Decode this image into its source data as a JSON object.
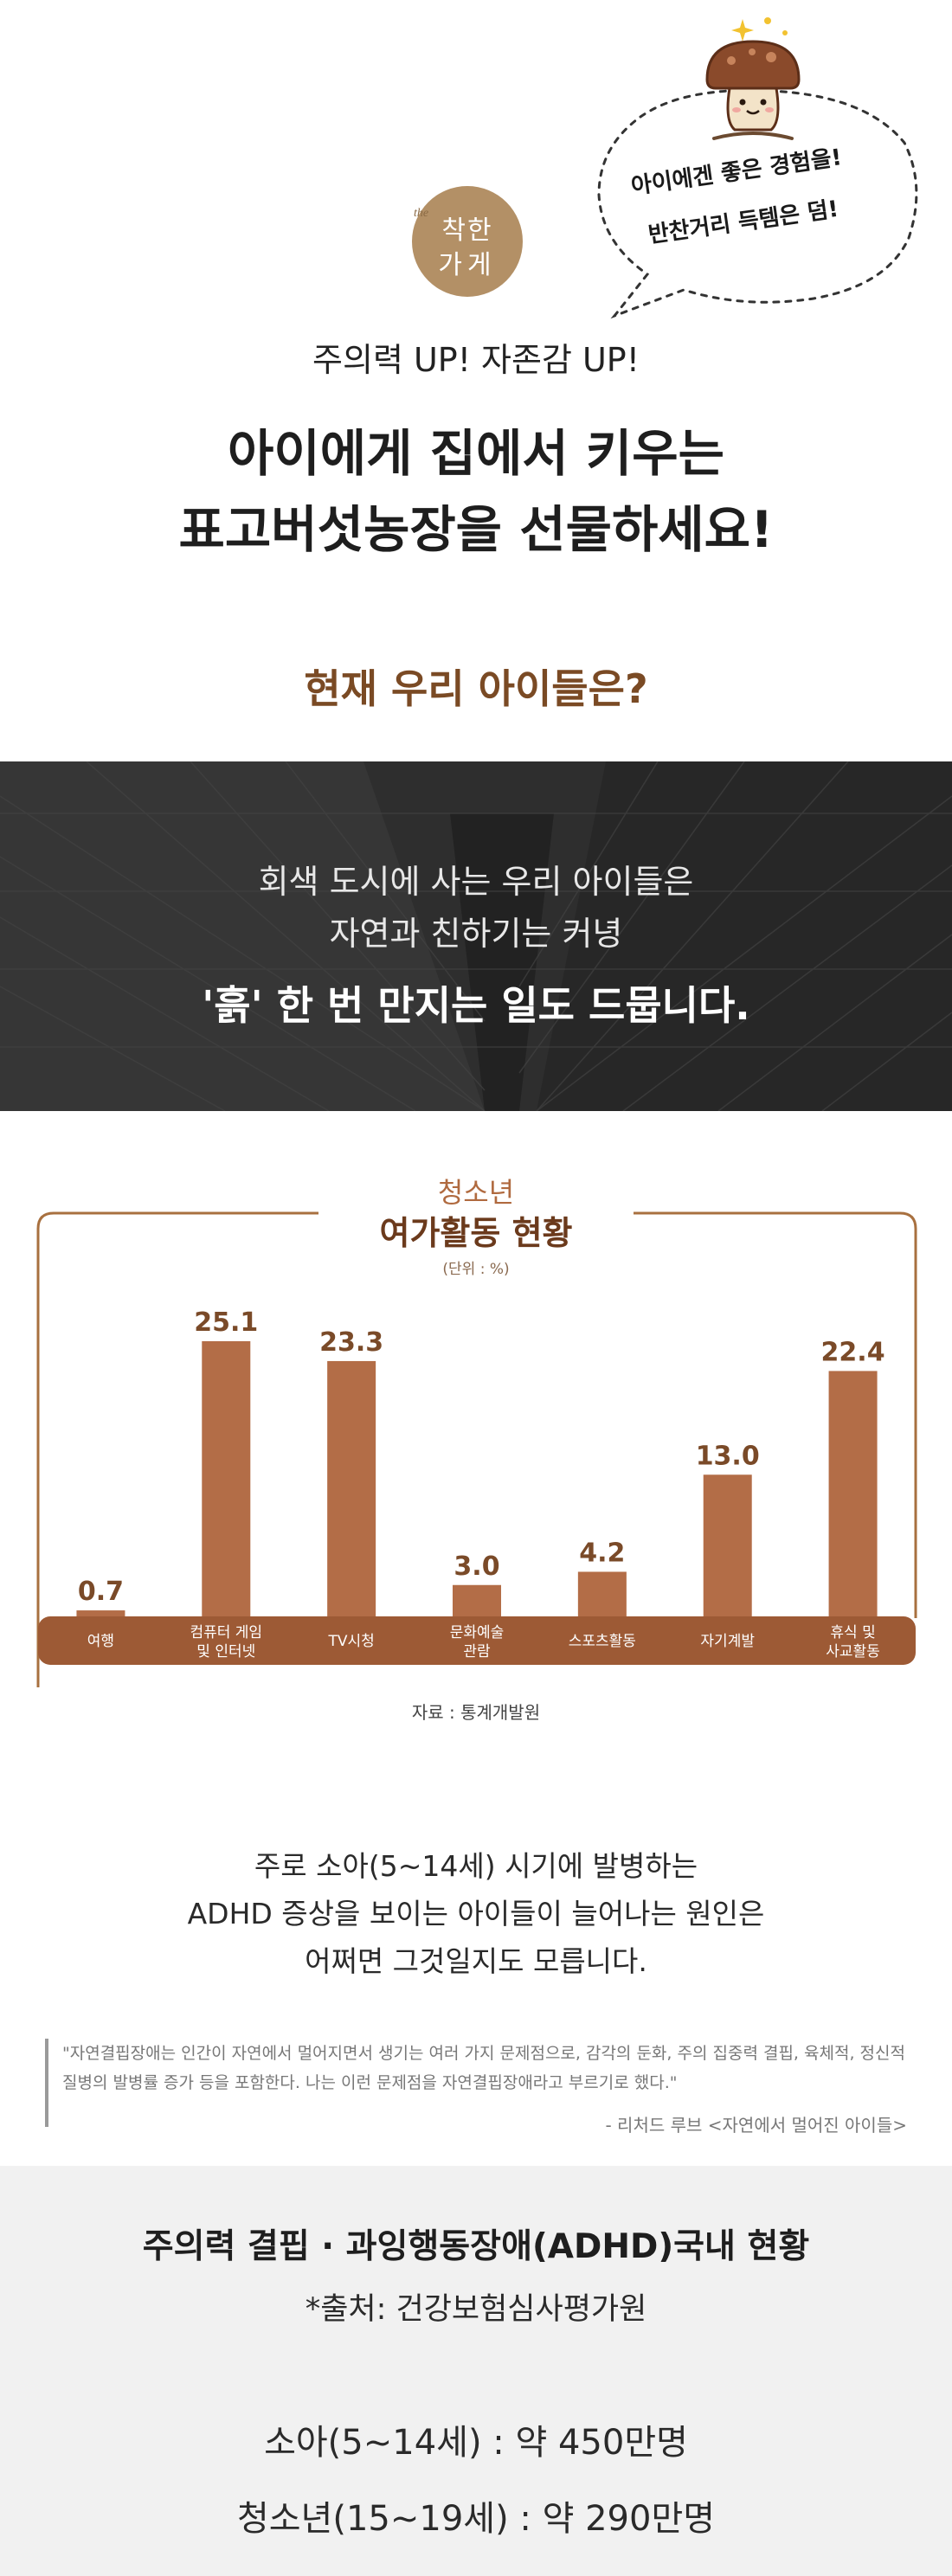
{
  "header": {
    "bubble_line1": "아이에겐 좋은 경험을!",
    "bubble_line2": "반찬거리 득템은 덤!",
    "logo_prefix": "the",
    "logo_line1": "착한",
    "logo_line2": "가게",
    "subtitle": "주의력 UP! 자존감 UP!",
    "title_line1": "아이에게 집에서 키우는",
    "title_line2": "표고버섯농장을 선물하세요!"
  },
  "question": "현재 우리 아이들은?",
  "banner": {
    "line1": "회색 도시에 사는 우리 아이들은",
    "line2": "자연과 친하기는 커녕",
    "line3": "'흙' 한 번 만지는 일도 드뭅니다."
  },
  "chart_data": {
    "type": "bar",
    "title": "청소년 여가활동 현황",
    "title_line1": "청소년",
    "title_line2": "여가활동 현황",
    "unit": "(단위 : %)",
    "categories": [
      "여행",
      "컴퓨터 게임\n및 인터넷",
      "TV시청",
      "문화예술\n관람",
      "스포츠활동",
      "자기계발",
      "휴식 및\n사교활동"
    ],
    "values": [
      0.7,
      25.1,
      23.3,
      3.0,
      4.2,
      13.0,
      22.4
    ],
    "value_labels": [
      "0.7",
      "25.1",
      "23.3",
      "3.0",
      "4.2",
      "13.0",
      "22.4"
    ],
    "ylim": [
      0,
      30
    ],
    "source": "자료 : 통계개발원",
    "colors": {
      "bar": "#b36d47",
      "axis_band": "#9d5a35",
      "frame": "#a8703f",
      "value": "#7a4a28"
    }
  },
  "info": {
    "line1": "주로 소아(5~14세) 시기에 발병하는",
    "line2": "ADHD 증상을 보이는 아이들이 늘어나는 원인은",
    "line3": "어쩌면 그것일지도 모릅니다."
  },
  "quote": {
    "text": "\"자연결핍장애는 인간이 자연에서 멀어지면서 생기는 여러 가지 문제점으로, 감각의 둔화, 주의 집중력 결핍, 육체적, 정신적 질병의 발병률 증가 등을 포함한다. 나는 이런 문제점을 자연결핍장애라고 부르기로 했다.\"",
    "author": "- 리처드 루브 <자연에서 멀어진 아이들>"
  },
  "adhd": {
    "title": "주의력 결핍 · 과잉행동장애(ADHD)국내 현황",
    "source": "*출처: 건강보험심사평가원",
    "stat1": "소아(5~14세) : 약 450만명",
    "stat2": "청소년(15~19세) : 약 290만명"
  }
}
